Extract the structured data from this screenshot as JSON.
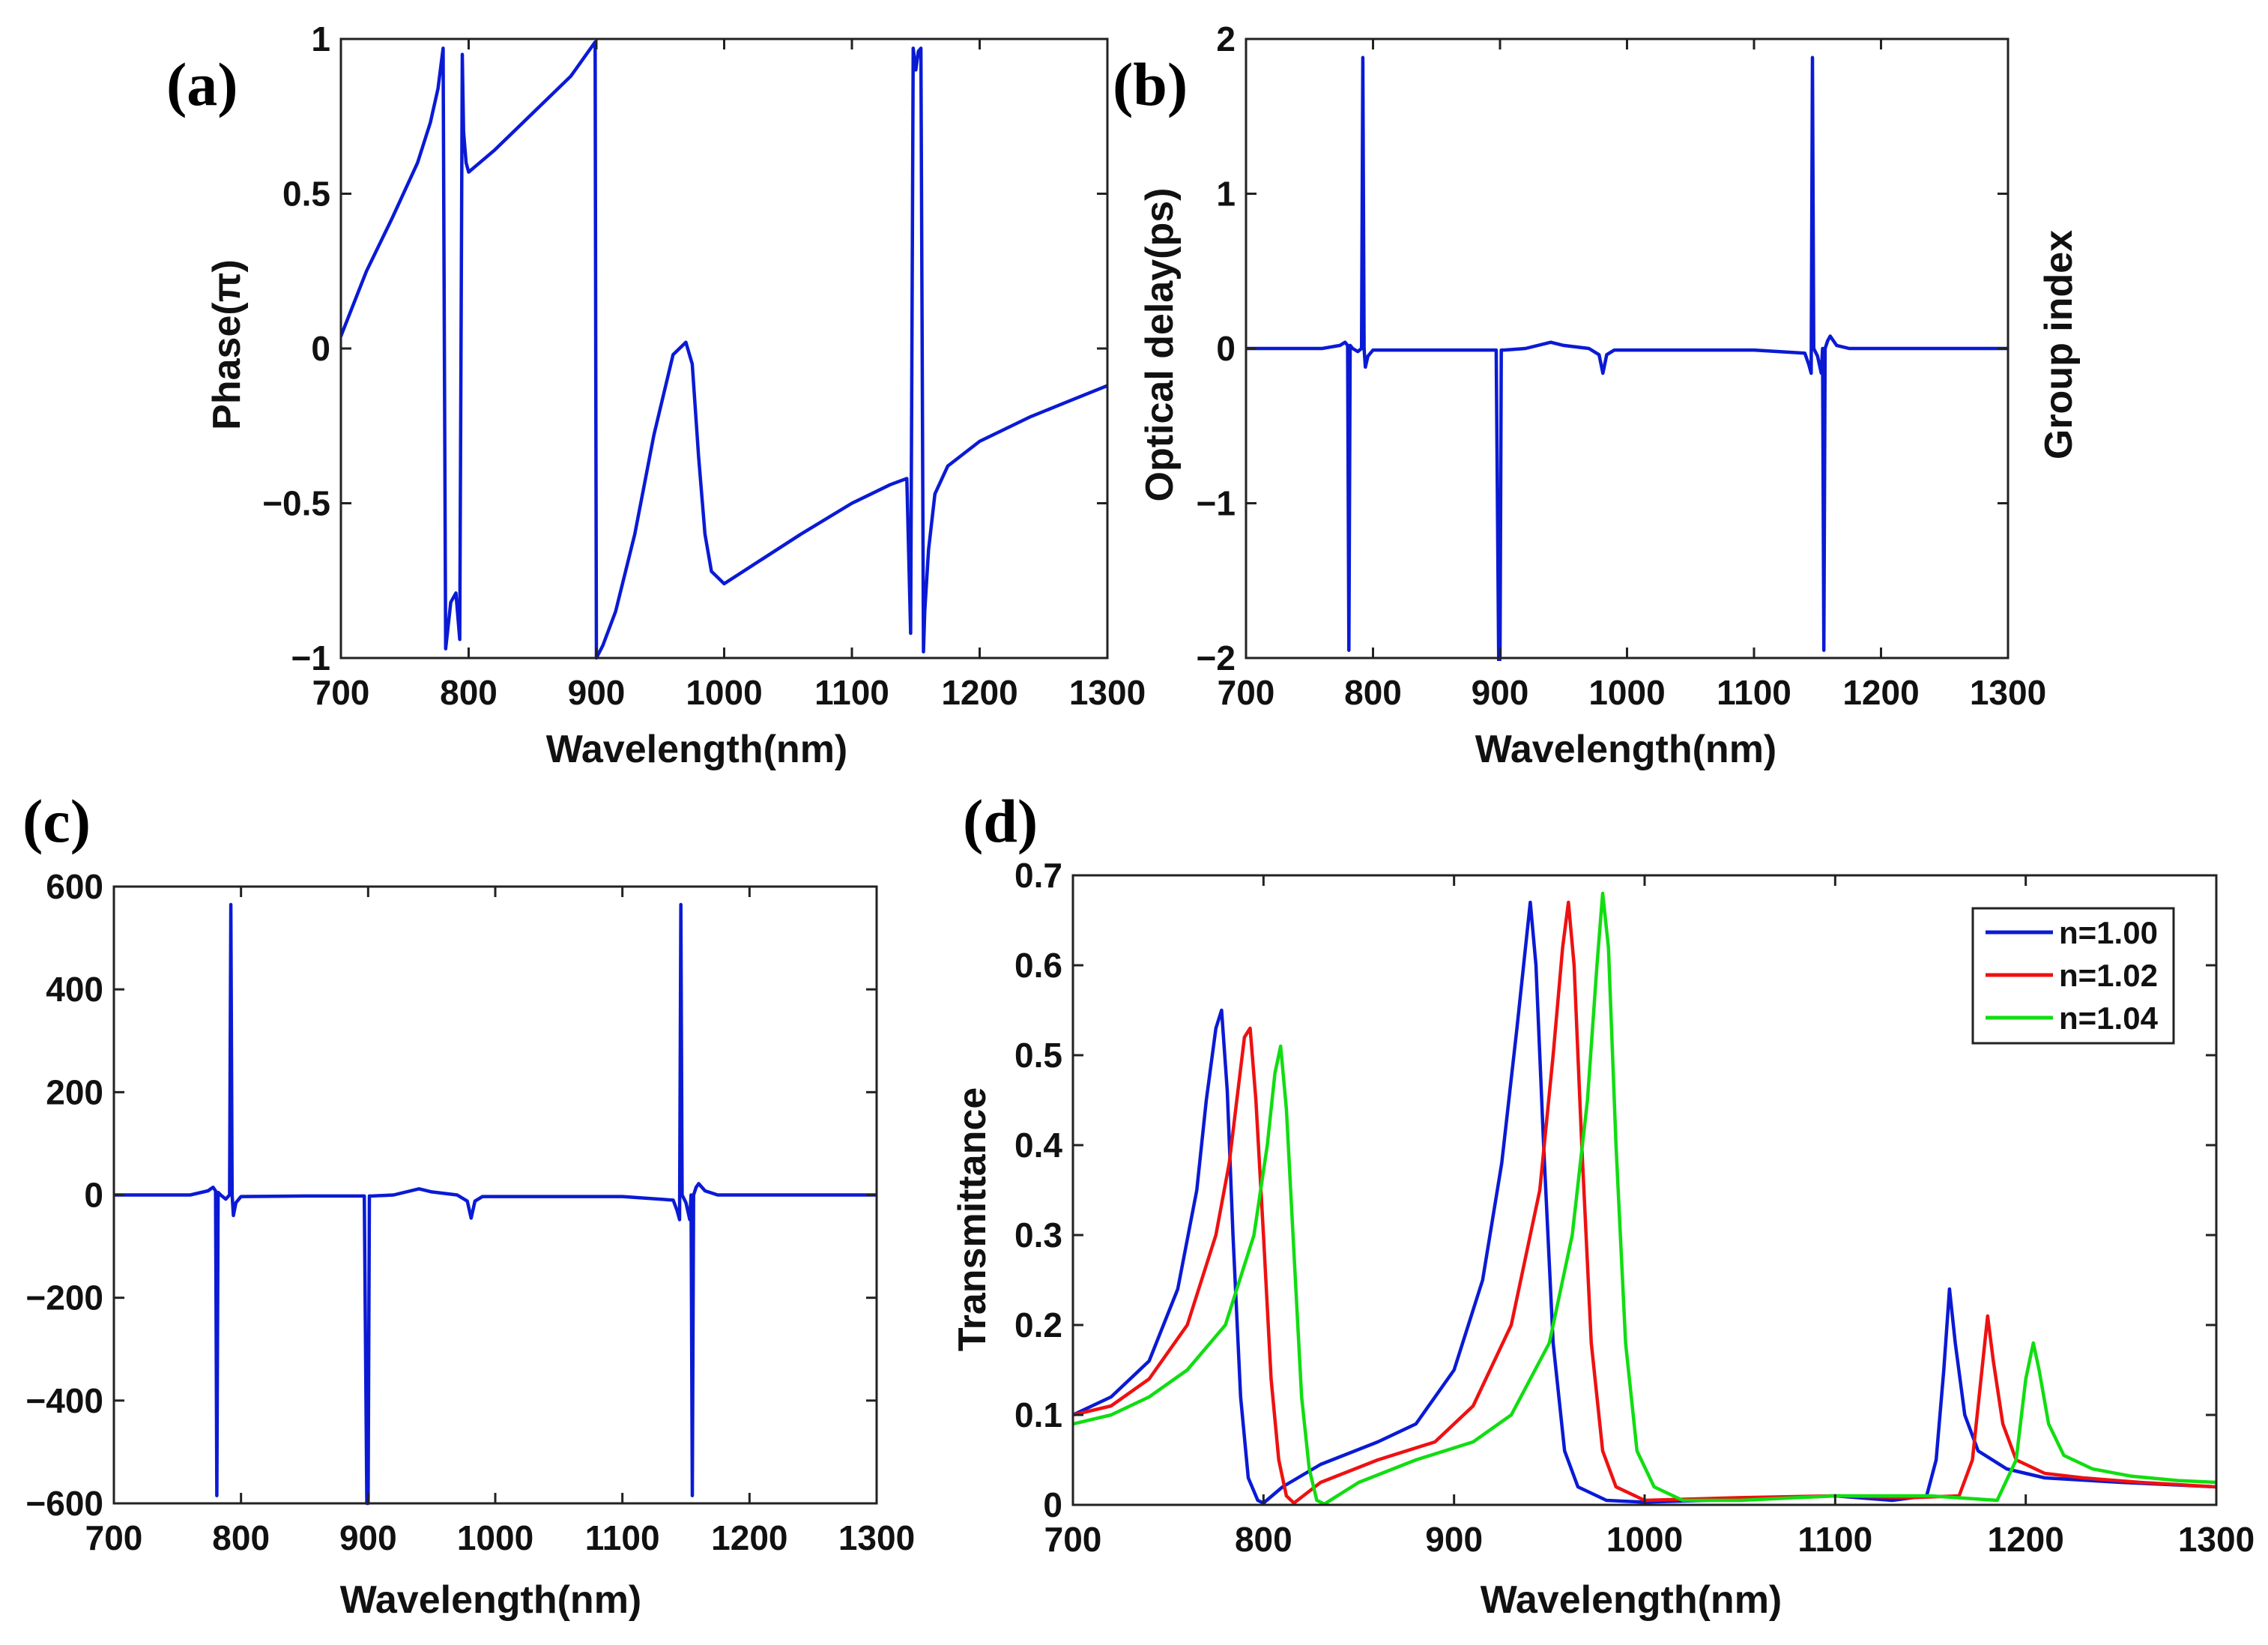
{
  "colors": {
    "blue": "#0a1ad4",
    "red": "#ee1111",
    "green": "#11dd11",
    "axis": "#222222"
  },
  "chart_data": [
    {
      "id": "a",
      "panel_label": "(a)",
      "type": "line",
      "xlabel": "Wavelength(nm)",
      "ylabel": "Phase(π)",
      "xlim": [
        700,
        1300
      ],
      "ylim": [
        -1,
        1
      ],
      "xticks": [
        700,
        800,
        900,
        1000,
        1100,
        1200,
        1300
      ],
      "xtick_labels": [
        "700",
        "800",
        "900",
        "1000",
        "1100",
        "1200",
        "1300"
      ],
      "yticks": [
        -1,
        -0.5,
        0,
        0.5,
        1
      ],
      "ytick_labels": [
        "−1",
        "−0.5",
        "0",
        "0.5",
        "1"
      ],
      "series": [
        {
          "name": "phase",
          "color": "#0a1ad4",
          "x": [
            700,
            720,
            740,
            760,
            770,
            776,
            780,
            781,
            782,
            786,
            790,
            793,
            794,
            795,
            796,
            798,
            800,
            820,
            850,
            880,
            899,
            899.5,
            900,
            905,
            915,
            930,
            945,
            960,
            970,
            975,
            980,
            985,
            990,
            1000,
            1030,
            1060,
            1100,
            1130,
            1143,
            1146,
            1147,
            1148,
            1150,
            1152,
            1154,
            1155,
            1156,
            1157,
            1160,
            1165,
            1175,
            1200,
            1240,
            1270,
            1300
          ],
          "y": [
            0.04,
            0.25,
            0.42,
            0.6,
            0.73,
            0.84,
            0.97,
            0.0,
            -0.97,
            -0.82,
            -0.79,
            -0.94,
            0.0,
            0.95,
            0.7,
            0.6,
            0.57,
            0.64,
            0.76,
            0.88,
            0.99,
            0.0,
            -1.0,
            -0.96,
            -0.85,
            -0.6,
            -0.28,
            -0.02,
            0.02,
            -0.05,
            -0.35,
            -0.6,
            -0.72,
            -0.76,
            -0.68,
            -0.6,
            -0.5,
            -0.44,
            -0.42,
            -0.92,
            0.0,
            0.97,
            0.9,
            0.96,
            0.97,
            0.0,
            -0.98,
            -0.85,
            -0.65,
            -0.47,
            -0.38,
            -0.3,
            -0.22,
            -0.17,
            -0.12
          ]
        }
      ]
    },
    {
      "id": "b",
      "panel_label": "(b)",
      "type": "line",
      "xlabel": "Wavelength(nm)",
      "ylabel": "Optical delay(ps)",
      "right_ylabel": "Group index",
      "xlim": [
        700,
        1300
      ],
      "ylim": [
        -2,
        2
      ],
      "xticks": [
        700,
        800,
        900,
        1000,
        1100,
        1200,
        1300
      ],
      "xtick_labels": [
        "700",
        "800",
        "900",
        "1000",
        "1100",
        "1200",
        "1300"
      ],
      "yticks": [
        -2,
        -1,
        0,
        1,
        2
      ],
      "ytick_labels": [
        "−2",
        "−1",
        "0",
        "1",
        "2"
      ],
      "series": [
        {
          "name": "delay",
          "color": "#0a1ad4",
          "x": [
            700,
            760,
            774,
            778,
            780,
            781,
            782,
            784,
            788,
            791,
            792,
            793,
            794,
            796,
            800,
            850,
            897,
            899,
            900,
            901,
            903,
            920,
            940,
            950,
            970,
            978,
            981,
            984,
            990,
            1050,
            1100,
            1140,
            1143,
            1145,
            1146,
            1147,
            1150,
            1153,
            1154,
            1155,
            1156,
            1158,
            1160,
            1165,
            1175,
            1200,
            1300
          ],
          "y": [
            0,
            0,
            0.02,
            0.04,
            0.02,
            -1.95,
            0.02,
            0.0,
            -0.02,
            0.0,
            1.88,
            0.0,
            -0.12,
            -0.05,
            -0.01,
            -0.01,
            -0.01,
            -2.05,
            -2.0,
            -0.01,
            -0.01,
            0.0,
            0.04,
            0.02,
            0.0,
            -0.04,
            -0.16,
            -0.04,
            -0.01,
            -0.01,
            -0.01,
            -0.03,
            -0.1,
            -0.16,
            1.88,
            0.0,
            -0.05,
            -0.16,
            0.0,
            -1.95,
            0.0,
            0.05,
            0.08,
            0.02,
            0.0,
            0.0,
            0.0
          ]
        }
      ]
    },
    {
      "id": "c",
      "panel_label": "(c)",
      "type": "line",
      "xlabel": "Wavelength(nm)",
      "ylabel": "",
      "xlim": [
        700,
        1300
      ],
      "ylim": [
        -600,
        600
      ],
      "xticks": [
        700,
        800,
        900,
        1000,
        1100,
        1200,
        1300
      ],
      "xtick_labels": [
        "700",
        "800",
        "900",
        "1000",
        "1100",
        "1200",
        "1300"
      ],
      "yticks": [
        -600,
        -400,
        -200,
        0,
        200,
        400,
        600
      ],
      "ytick_labels": [
        "−600",
        "−400",
        "−200",
        "0",
        "200",
        "400",
        "600"
      ],
      "series": [
        {
          "name": "group-index",
          "color": "#0a1ad4",
          "x": [
            700,
            760,
            774,
            778,
            780,
            781,
            782,
            784,
            788,
            791,
            792,
            793,
            794,
            796,
            800,
            850,
            897,
            899,
            900,
            901,
            903,
            920,
            940,
            950,
            970,
            978,
            981,
            984,
            990,
            1050,
            1100,
            1140,
            1143,
            1145,
            1146,
            1147,
            1150,
            1153,
            1154,
            1155,
            1156,
            1158,
            1160,
            1165,
            1175,
            1200,
            1300
          ],
          "y": [
            0,
            0,
            8,
            15,
            8,
            -585,
            5,
            0,
            -8,
            0,
            565,
            0,
            -40,
            -15,
            -3,
            -2,
            -2,
            -600,
            -600,
            -2,
            -2,
            0,
            12,
            6,
            0,
            -12,
            -45,
            -12,
            -3,
            -3,
            -3,
            -10,
            -30,
            -48,
            565,
            0,
            -15,
            -48,
            0,
            -585,
            0,
            15,
            22,
            8,
            0,
            0,
            0
          ]
        }
      ]
    },
    {
      "id": "d",
      "panel_label": "(d)",
      "type": "line",
      "xlabel": "Wavelength(nm)",
      "ylabel": "Transmittance",
      "xlim": [
        700,
        1300
      ],
      "ylim": [
        0,
        0.7
      ],
      "xticks": [
        700,
        800,
        900,
        1000,
        1100,
        1200,
        1300
      ],
      "xtick_labels": [
        "700",
        "800",
        "900",
        "1000",
        "1100",
        "1200",
        "1300"
      ],
      "yticks": [
        0,
        0.1,
        0.2,
        0.3,
        0.4,
        0.5,
        0.6,
        0.7
      ],
      "ytick_labels": [
        "0",
        "0.1",
        "0.2",
        "0.3",
        "0.4",
        "0.5",
        "0.6",
        "0.7"
      ],
      "legend": {
        "position": "top-right",
        "entries": [
          "n=1.00",
          "n=1.02",
          "n=1.04"
        ]
      },
      "series": [
        {
          "name": "n=1.00",
          "color": "#0a1ad4",
          "x": [
            700,
            720,
            740,
            755,
            765,
            770,
            775,
            778,
            781,
            784,
            788,
            792,
            797,
            800,
            810,
            830,
            860,
            880,
            900,
            915,
            925,
            933,
            938,
            940,
            943,
            947,
            952,
            958,
            965,
            980,
            1000,
            1050,
            1100,
            1130,
            1148,
            1153,
            1157,
            1160,
            1163,
            1168,
            1175,
            1190,
            1210,
            1250,
            1300
          ],
          "y": [
            0.1,
            0.12,
            0.16,
            0.24,
            0.35,
            0.45,
            0.53,
            0.55,
            0.46,
            0.3,
            0.12,
            0.03,
            0.005,
            0.002,
            0.02,
            0.045,
            0.07,
            0.09,
            0.15,
            0.25,
            0.38,
            0.53,
            0.63,
            0.67,
            0.6,
            0.4,
            0.18,
            0.06,
            0.02,
            0.005,
            0.003,
            0.006,
            0.01,
            0.005,
            0.01,
            0.05,
            0.15,
            0.24,
            0.18,
            0.1,
            0.06,
            0.04,
            0.03,
            0.025,
            0.02
          ]
        },
        {
          "name": "n=1.02",
          "color": "#ee1111",
          "x": [
            700,
            720,
            740,
            760,
            775,
            782,
            786,
            790,
            793,
            796,
            800,
            804,
            808,
            812,
            816,
            830,
            860,
            890,
            910,
            930,
            945,
            952,
            957,
            960,
            963,
            967,
            972,
            978,
            985,
            1000,
            1050,
            1100,
            1140,
            1165,
            1172,
            1177,
            1180,
            1183,
            1188,
            1195,
            1210,
            1230,
            1260,
            1300
          ],
          "y": [
            0.1,
            0.11,
            0.14,
            0.2,
            0.3,
            0.38,
            0.45,
            0.52,
            0.53,
            0.45,
            0.3,
            0.14,
            0.05,
            0.01,
            0.002,
            0.025,
            0.05,
            0.07,
            0.11,
            0.2,
            0.35,
            0.5,
            0.62,
            0.67,
            0.6,
            0.4,
            0.18,
            0.06,
            0.02,
            0.005,
            0.008,
            0.01,
            0.008,
            0.01,
            0.05,
            0.15,
            0.21,
            0.16,
            0.09,
            0.05,
            0.035,
            0.03,
            0.025,
            0.02
          ]
        },
        {
          "name": "n=1.04",
          "color": "#11dd11",
          "x": [
            700,
            720,
            740,
            760,
            780,
            795,
            802,
            806,
            809,
            812,
            816,
            820,
            824,
            828,
            832,
            850,
            880,
            910,
            930,
            950,
            962,
            970,
            975,
            978,
            981,
            985,
            990,
            996,
            1005,
            1020,
            1050,
            1100,
            1150,
            1185,
            1195,
            1200,
            1204,
            1207,
            1212,
            1220,
            1235,
            1255,
            1280,
            1300
          ],
          "y": [
            0.09,
            0.1,
            0.12,
            0.15,
            0.2,
            0.3,
            0.4,
            0.48,
            0.51,
            0.44,
            0.28,
            0.12,
            0.04,
            0.005,
            0.001,
            0.025,
            0.05,
            0.07,
            0.1,
            0.18,
            0.3,
            0.45,
            0.6,
            0.68,
            0.62,
            0.4,
            0.18,
            0.06,
            0.02,
            0.005,
            0.005,
            0.01,
            0.01,
            0.005,
            0.05,
            0.14,
            0.18,
            0.15,
            0.09,
            0.055,
            0.04,
            0.032,
            0.027,
            0.025
          ]
        }
      ]
    }
  ]
}
